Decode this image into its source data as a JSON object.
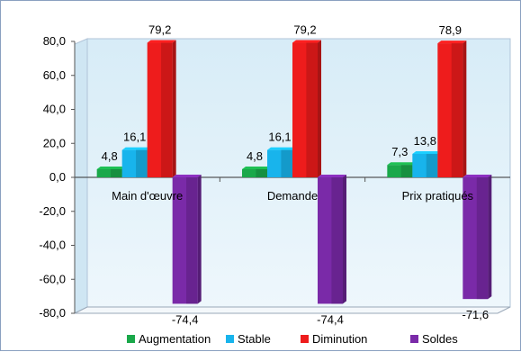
{
  "chart_data": {
    "type": "bar",
    "categories": [
      "Main d'œuvre",
      "Demande",
      "Prix pratiqués"
    ],
    "series": [
      {
        "name": "Augmentation",
        "values": [
          4.8,
          4.8,
          7.3
        ],
        "labels": [
          "4,8",
          "4,8",
          "7,3"
        ],
        "color": "#1aa84a"
      },
      {
        "name": "Stable",
        "values": [
          16.1,
          16.1,
          13.8
        ],
        "labels": [
          "16,1",
          "16,1",
          "13,8"
        ],
        "color": "#18b4ec"
      },
      {
        "name": "Diminution",
        "values": [
          79.2,
          79.2,
          78.9
        ],
        "labels": [
          "79,2",
          "79,2",
          "78,9"
        ],
        "color": "#ee1c1c"
      },
      {
        "name": "Soldes",
        "values": [
          -74.4,
          -74.4,
          -71.6
        ],
        "labels": [
          "-74,4",
          "-74,4",
          "-71,6"
        ],
        "color": "#7a2aa8"
      }
    ],
    "ylim": [
      -80,
      80
    ],
    "yticks": [
      "80,0",
      "60,0",
      "40,0",
      "20,0",
      "0,0",
      "-20,0",
      "-40,0",
      "-60,0",
      "-80,0"
    ],
    "ytick_values": [
      80,
      60,
      40,
      20,
      0,
      -20,
      -40,
      -60,
      -80
    ],
    "grid": false,
    "legend": "bottom"
  }
}
